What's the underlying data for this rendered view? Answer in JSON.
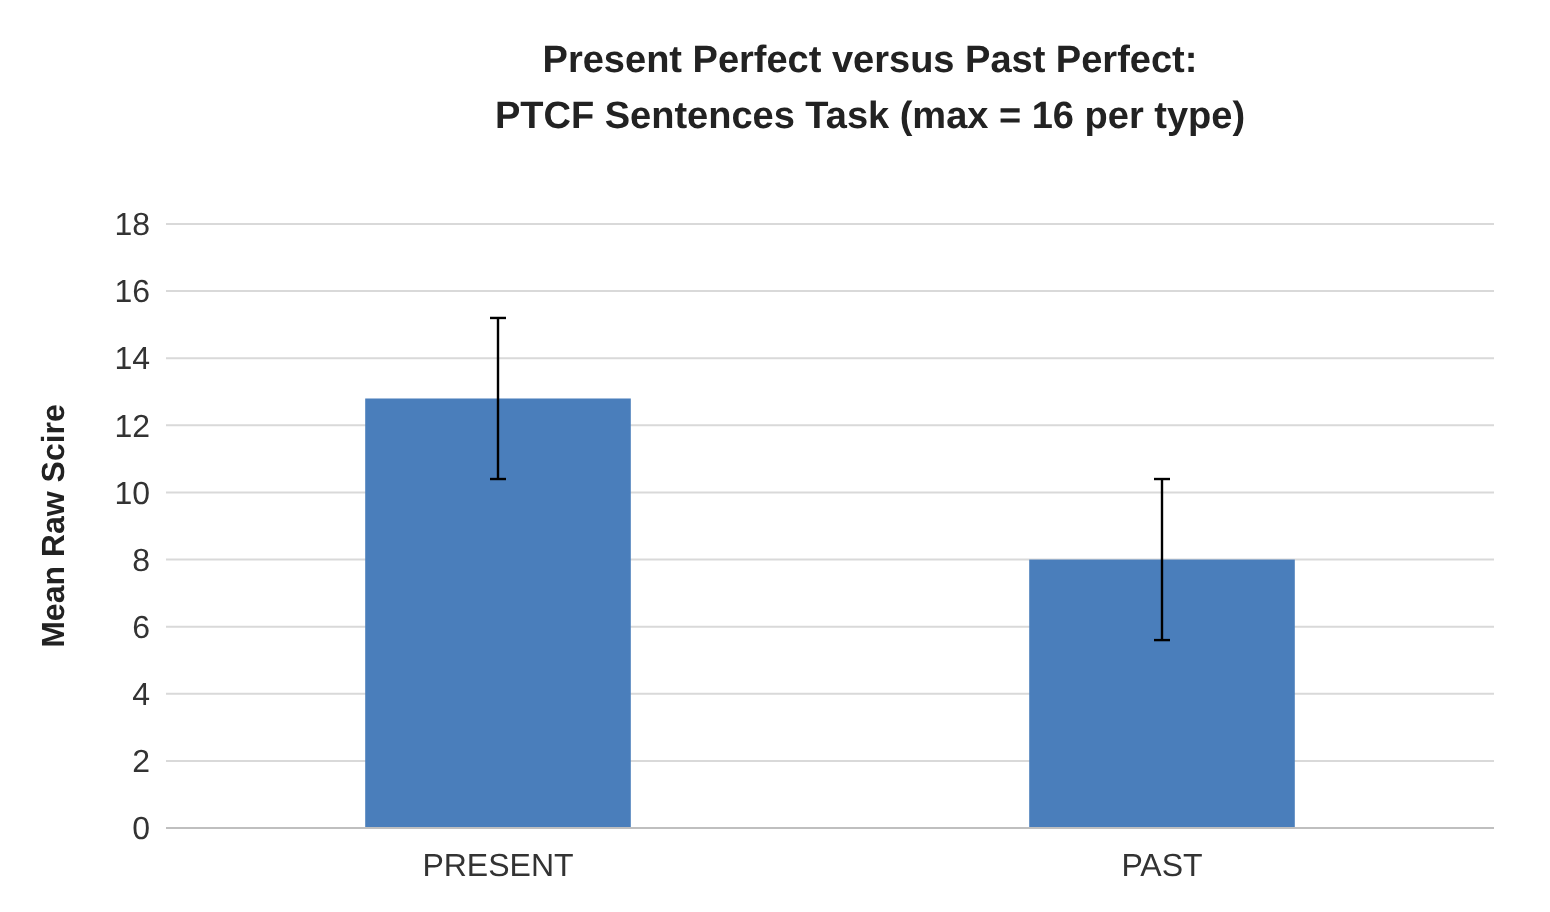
{
  "chart_data": {
    "type": "bar",
    "title": "Present Perfect versus Past Perfect:\nPTCF Sentences Task (max = 16 per type)",
    "ylabel": "Mean Raw Scire",
    "categories": [
      "PRESENT",
      "PAST"
    ],
    "values": [
      12.8,
      8.0
    ],
    "errors": [
      2.4,
      2.4
    ],
    "color": "#4a7ebb",
    "ylim": [
      0,
      18
    ],
    "yticks": [
      0,
      2,
      4,
      6,
      8,
      10,
      12,
      14,
      16,
      18
    ],
    "grid": "y"
  }
}
